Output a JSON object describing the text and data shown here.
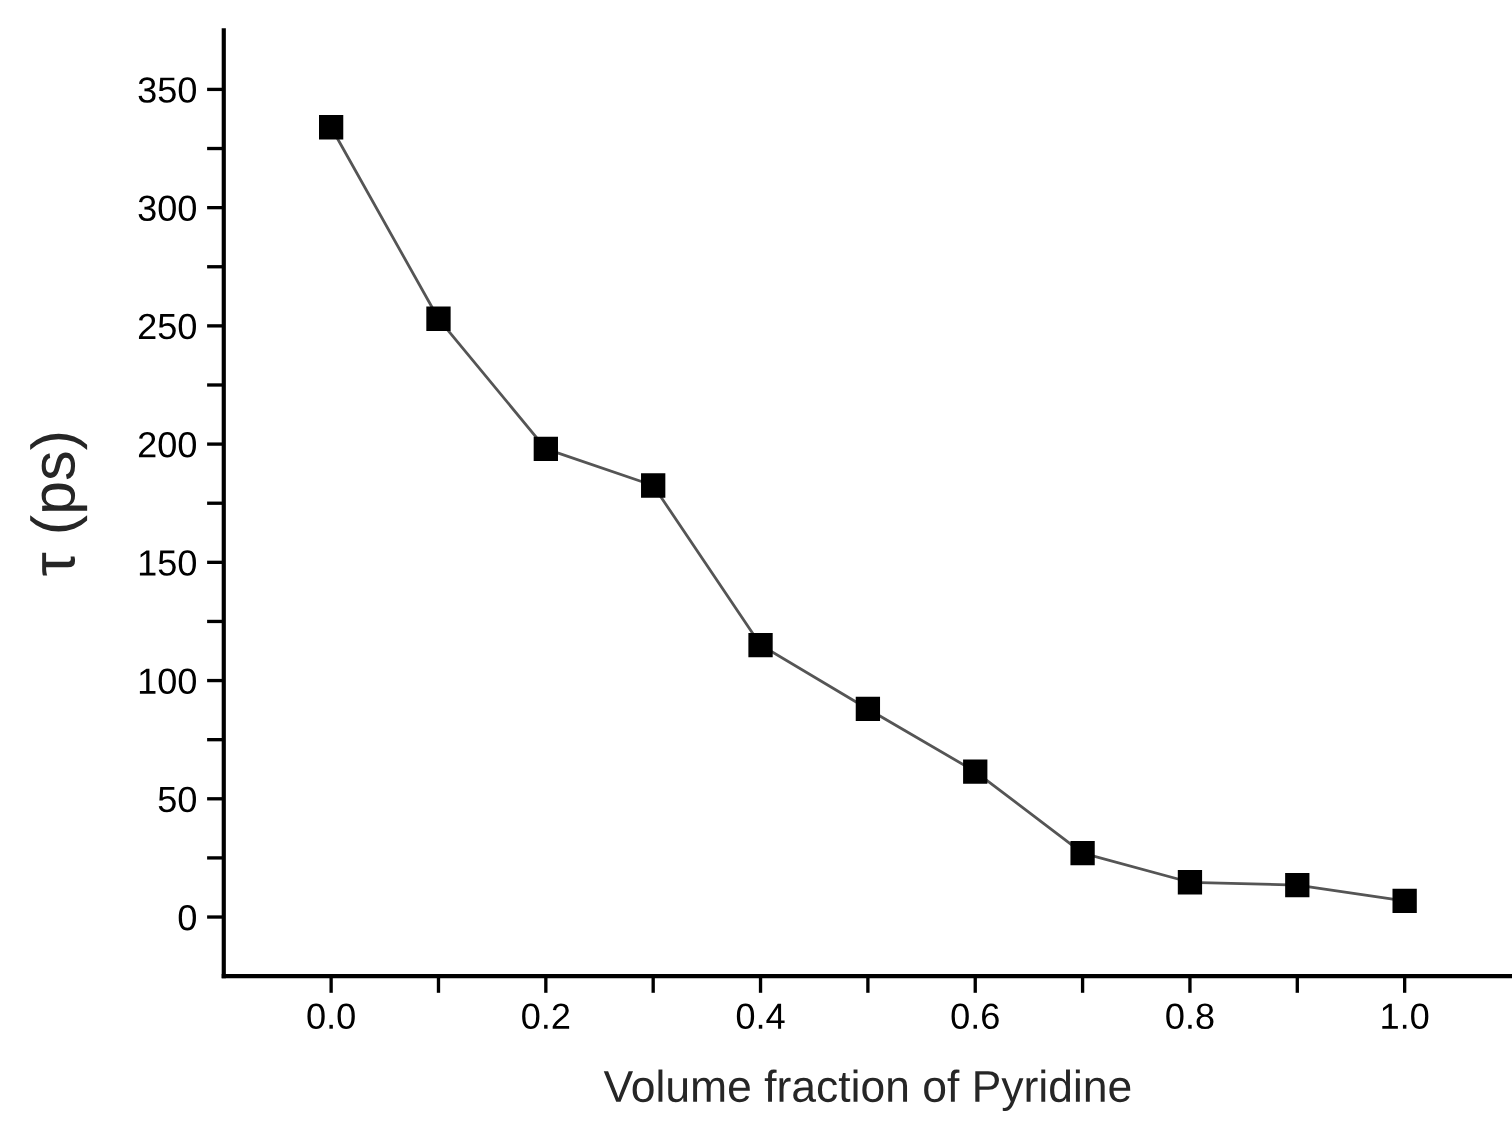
{
  "chart_data": {
    "type": "line",
    "xlabel": "Volume fraction of Pyridine",
    "ylabel": "τ (ps)",
    "x": [
      0.0,
      0.1,
      0.2,
      0.3,
      0.4,
      0.5,
      0.6,
      0.7,
      0.8,
      0.9,
      1.0
    ],
    "series": [
      {
        "color": "#000000",
        "values": [
          334,
          253,
          198,
          182.5,
          115,
          88,
          61.5,
          27,
          14.7,
          13.5,
          6.8
        ]
      }
    ],
    "marker": "square",
    "line_style": "solid",
    "grid": false,
    "legend": false,
    "xlim": [
      -0.1,
      1.1
    ],
    "xticks": [
      {
        "value": 0.0,
        "label": "0.0"
      },
      {
        "value": 0.1,
        "label": null
      },
      {
        "value": 0.2,
        "label": "0.2"
      },
      {
        "value": 0.3,
        "label": null
      },
      {
        "value": 0.4,
        "label": "0.4"
      },
      {
        "value": 0.5,
        "label": null
      },
      {
        "value": 0.6,
        "label": "0.6"
      },
      {
        "value": 0.7,
        "label": null
      },
      {
        "value": 0.8,
        "label": "0.8"
      },
      {
        "value": 0.9,
        "label": null
      },
      {
        "value": 1.0,
        "label": "1.0"
      }
    ],
    "ylim": [
      -25,
      375
    ],
    "yticks": [
      0,
      {
        "value": 25,
        "label": null
      },
      50,
      {
        "value": 75,
        "label": null
      },
      100,
      {
        "value": 125,
        "label": null
      },
      150,
      {
        "value": 175,
        "label": null
      },
      200,
      {
        "value": 225,
        "label": null
      },
      250,
      {
        "value": 275,
        "label": null
      },
      300,
      {
        "value": 325,
        "label": null
      },
      350
    ]
  }
}
